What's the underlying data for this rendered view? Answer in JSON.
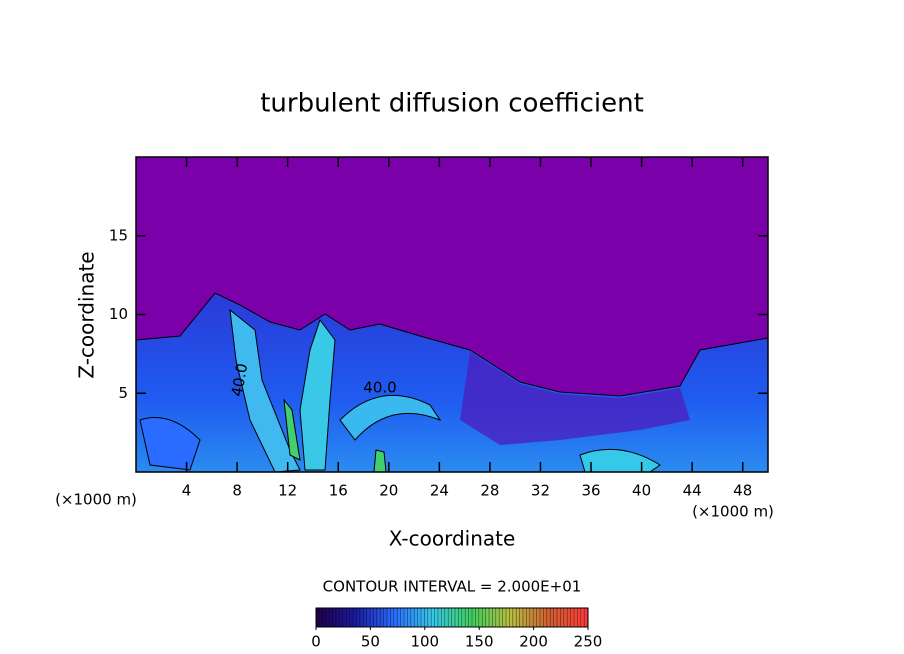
{
  "chart_data": {
    "type": "contour",
    "title": "turbulent diffusion coefficient",
    "x_label": "X-coordinate",
    "y_label": "Z-coordinate",
    "x_unit": "(×1000 m)",
    "y_unit": "(×1000 m)",
    "xlim": [
      0,
      50
    ],
    "xticks": [
      4,
      8,
      12,
      16,
      20,
      24,
      28,
      32,
      36,
      40,
      44,
      48
    ],
    "ylim": [
      0,
      20
    ],
    "yticks": [
      5,
      10,
      15
    ],
    "contour_interval": "CONTOUR INTERVAL = 2.000E+01",
    "contour_labels": [
      "40.0",
      "40.0"
    ],
    "colorbar": {
      "lim": [
        0,
        250
      ],
      "ticks": [
        0,
        50,
        100,
        150,
        200,
        250
      ],
      "colors": [
        "#20004a",
        "#1a1aa0",
        "#2a6cff",
        "#35c8e8",
        "#40d060",
        "#b8c040",
        "#d06030",
        "#ff3a3a"
      ]
    }
  }
}
